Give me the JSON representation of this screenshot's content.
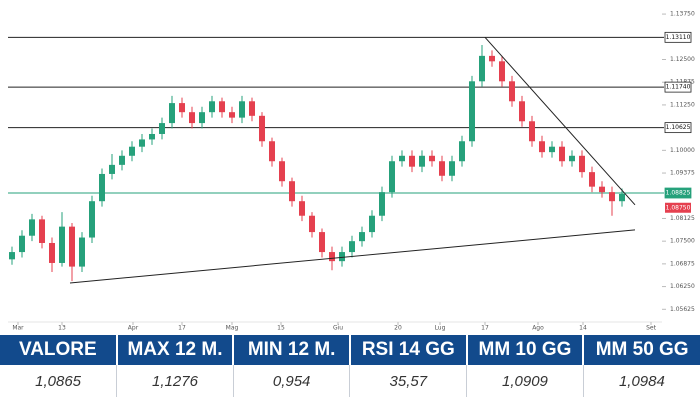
{
  "chart_data": {
    "type": "candlestick",
    "open": [
      1.07,
      1.072,
      1.0765,
      1.081,
      1.0745,
      1.069,
      1.079,
      1.068,
      1.076,
      1.086,
      1.0935,
      1.096,
      1.0985,
      1.101,
      1.103,
      1.1045,
      1.1075,
      1.113,
      1.1105,
      1.1075,
      1.1105,
      1.1135,
      1.1105,
      1.109,
      1.1135,
      1.1095,
      1.1025,
      1.097,
      1.0915,
      1.086,
      1.082,
      1.0775,
      1.072,
      1.0695,
      1.072,
      1.075,
      1.0775,
      1.082,
      1.0885,
      1.097,
      1.0985,
      1.0955,
      1.0985,
      1.097,
      1.093,
      1.097,
      1.1025,
      1.119,
      1.126,
      1.1245,
      1.119,
      1.1135,
      1.108,
      1.1025,
      1.0995,
      1.101,
      1.097,
      1.0985,
      1.094,
      1.09,
      1.0885,
      1.086
    ],
    "high": [
      1.0735,
      1.078,
      1.0825,
      1.082,
      1.076,
      1.083,
      1.08,
      1.0775,
      1.0875,
      1.095,
      1.099,
      1.1,
      1.1025,
      1.1045,
      1.106,
      1.109,
      1.115,
      1.1145,
      1.112,
      1.112,
      1.115,
      1.1145,
      1.112,
      1.115,
      1.1145,
      1.1105,
      1.1035,
      1.098,
      1.0925,
      1.0875,
      1.083,
      1.0785,
      1.0735,
      1.0735,
      1.0765,
      1.079,
      1.0835,
      1.09,
      1.0985,
      1.1,
      1.1,
      1.1,
      1.1,
      1.0985,
      1.0985,
      1.104,
      1.1205,
      1.129,
      1.1275,
      1.126,
      1.1205,
      1.115,
      1.1095,
      1.104,
      1.1025,
      1.1025,
      1.1,
      1.1,
      1.0955,
      1.0915,
      1.09,
      1.0895
    ],
    "low": [
      1.0685,
      1.0705,
      1.075,
      1.073,
      1.0665,
      1.068,
      1.064,
      1.0665,
      1.0745,
      1.0845,
      1.092,
      1.0945,
      1.097,
      1.0995,
      1.1015,
      1.103,
      1.106,
      1.109,
      1.106,
      1.106,
      1.109,
      1.109,
      1.1075,
      1.1075,
      1.108,
      1.101,
      1.0955,
      1.09,
      1.0845,
      1.0805,
      1.076,
      1.0705,
      1.067,
      1.068,
      1.0705,
      1.0735,
      1.076,
      1.0805,
      1.087,
      1.0955,
      1.094,
      1.094,
      1.0955,
      1.0915,
      1.0915,
      1.0955,
      1.101,
      1.1175,
      1.123,
      1.1175,
      1.112,
      1.1065,
      1.101,
      1.098,
      1.098,
      1.0955,
      1.0955,
      1.0925,
      1.0885,
      1.087,
      1.082,
      1.0845
    ],
    "close": [
      1.072,
      1.0765,
      1.081,
      1.0745,
      1.069,
      1.079,
      1.068,
      1.076,
      1.086,
      1.0935,
      1.096,
      1.0985,
      1.101,
      1.103,
      1.1045,
      1.1075,
      1.113,
      1.1105,
      1.1075,
      1.1105,
      1.1135,
      1.1105,
      1.109,
      1.1135,
      1.1095,
      1.1025,
      1.097,
      1.0915,
      1.086,
      1.082,
      1.0775,
      1.072,
      1.0695,
      1.072,
      1.075,
      1.0775,
      1.082,
      1.0885,
      1.097,
      1.0985,
      1.0955,
      1.0985,
      1.097,
      1.093,
      1.097,
      1.1025,
      1.119,
      1.126,
      1.1245,
      1.119,
      1.1135,
      1.108,
      1.1025,
      1.0995,
      1.101,
      1.097,
      1.0985,
      1.094,
      1.09,
      1.0885,
      1.086,
      1.088
    ],
    "up_color": "#26a17b",
    "down_color": "#e5404f",
    "xlim": [
      -0.6,
      64.8
    ],
    "xticks": [
      {
        "value": 0.6,
        "label": "Mar"
      },
      {
        "value": 5,
        "label": "13"
      },
      {
        "value": 12.1,
        "label": "Apr"
      },
      {
        "value": 17,
        "label": "17"
      },
      {
        "value": 22,
        "label": "Mag"
      },
      {
        "value": 26.9,
        "label": "15"
      },
      {
        "value": 32.6,
        "label": "Giu"
      },
      {
        "value": 38.6,
        "label": "20"
      },
      {
        "value": 42.8,
        "label": "Lug"
      },
      {
        "value": 47.3,
        "label": "17"
      },
      {
        "value": 52.6,
        "label": "Ago"
      },
      {
        "value": 57.1,
        "label": "14"
      },
      {
        "value": 63.9,
        "label": "Set"
      }
    ],
    "ylim": [
      1.05,
      1.14
    ],
    "yticks": [
      {
        "value": 1.1375,
        "label": "1.13750"
      },
      {
        "value": 1.125,
        "label": "1.12500"
      },
      {
        "value": 1.11875,
        "label": "1.11875"
      },
      {
        "value": 1.1125,
        "label": "1.11250"
      },
      {
        "value": 1.1,
        "label": "1.10000"
      },
      {
        "value": 1.09375,
        "label": "1.09375"
      },
      {
        "value": 1.08125,
        "label": "1.08125"
      },
      {
        "value": 1.075,
        "label": "1.07500"
      },
      {
        "value": 1.06875,
        "label": "1.06875"
      },
      {
        "value": 1.0625,
        "label": "1.06250"
      },
      {
        "value": 1.05625,
        "label": "1.05625"
      }
    ],
    "levels": [
      {
        "value": 1.1311,
        "label": "1.13110",
        "color": "#222222"
      },
      {
        "value": 1.1174,
        "label": "1.11740",
        "color": "#222222"
      },
      {
        "value": 1.10625,
        "label": "1.10625",
        "color": "#222222"
      },
      {
        "value": 1.08825,
        "label": "1.08825",
        "color": "#26a17b"
      }
    ],
    "price_label": {
      "value": 1.0875,
      "label": "1.08750",
      "color": "#e5404f"
    },
    "trendlines": [
      {
        "start": [
          47.3,
          1.1311
        ],
        "end": [
          62.3,
          1.085
        ]
      },
      {
        "start": [
          5.8,
          1.0635
        ],
        "end": [
          62.3,
          1.0781
        ]
      }
    ]
  },
  "table": {
    "header": [
      "VALORE",
      "MAX 12 M.",
      "MIN 12 M.",
      "RSI 14 GG",
      "MM 10 GG",
      "MM 50 GG"
    ],
    "rows": [
      [
        "1,0865",
        "1,1276",
        "0,954",
        "35,57",
        "1,0909",
        "1,0984"
      ]
    ]
  }
}
